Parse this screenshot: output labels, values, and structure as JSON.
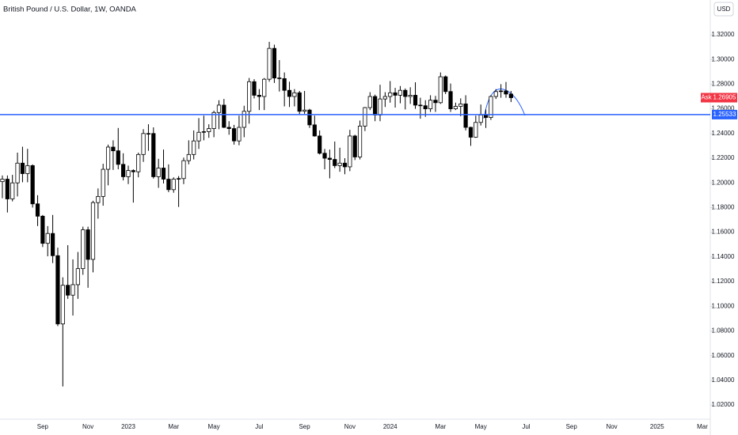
{
  "chart_data": {
    "type": "candlestick",
    "title": "British Pound / U.S. Dollar, 1W, OANDA",
    "currency": "USD",
    "categories": [
      null,
      null,
      null,
      null,
      null,
      null,
      null,
      null,
      "Sep",
      null,
      null,
      null,
      null,
      null,
      null,
      null,
      null,
      "Nov",
      null,
      null,
      null,
      null,
      null,
      null,
      null,
      "2023",
      null,
      null,
      null,
      null,
      null,
      null,
      null,
      null,
      "Mar",
      null,
      null,
      null,
      null,
      null,
      null,
      null,
      "May",
      null,
      null,
      null,
      null,
      null,
      null,
      null,
      null,
      "Jul",
      null,
      null,
      null,
      null,
      null,
      null,
      null,
      null,
      "Sep",
      null,
      null,
      null,
      null,
      null,
      null,
      null,
      null,
      "Nov",
      null,
      null,
      null,
      null,
      null,
      null,
      null,
      "2024",
      null,
      null,
      null,
      null,
      null,
      null,
      null,
      null,
      null,
      "Mar",
      null,
      null,
      null,
      null,
      null,
      null,
      null,
      "May",
      null,
      null,
      null,
      null,
      null,
      null,
      null,
      null,
      "Jul",
      null,
      null,
      null,
      null,
      null,
      null,
      null,
      null,
      "Sep",
      null,
      null,
      null,
      null,
      null,
      null,
      null,
      "Nov",
      null,
      null,
      null,
      null,
      null,
      null,
      null,
      null,
      "2025",
      null,
      null,
      null,
      null,
      null,
      null,
      null,
      null,
      "Mar",
      null
    ],
    "open": [
      1.201,
      1.203,
      1.187,
      1.2,
      1.216,
      1.2075,
      1.214,
      1.183,
      1.173,
      1.151,
      1.159,
      1.141,
      1.0857,
      1.117,
      1.109,
      1.1175,
      1.1305,
      1.162,
      1.138,
      1.184,
      1.189,
      1.211,
      1.229,
      1.226,
      1.215,
      1.205,
      1.21,
      1.209,
      1.223,
      1.24,
      1.24,
      1.205,
      1.212,
      1.203,
      1.1945,
      1.203,
      1.2035,
      1.218,
      1.223,
      1.234,
      1.241,
      1.2415,
      1.244,
      1.257,
      1.263,
      1.245,
      1.244,
      1.234,
      1.245,
      1.258,
      1.282,
      1.271,
      1.27,
      1.284,
      1.309,
      1.285,
      1.2845,
      1.275,
      1.27,
      1.273,
      1.258,
      1.259,
      1.247,
      1.238,
      1.224,
      1.22,
      1.219,
      1.214,
      1.216,
      1.213,
      1.238,
      1.221,
      1.246,
      1.261,
      1.27,
      1.255,
      1.268,
      1.27,
      1.273,
      1.271,
      1.275,
      1.27,
      1.271,
      1.263,
      1.2625,
      1.26,
      1.267,
      1.265,
      1.286,
      1.274,
      1.26,
      1.262,
      1.264,
      1.245,
      1.237,
      1.249,
      1.255,
      1.253,
      1.27,
      1.274,
      1.2745,
      1.272,
      null,
      null,
      null,
      null,
      null,
      null,
      null,
      null,
      null,
      null,
      null,
      null,
      null,
      null,
      null,
      null,
      null,
      null,
      null,
      null,
      null,
      null,
      null,
      null,
      null,
      null,
      null,
      null,
      null,
      null,
      null,
      null,
      null,
      null,
      null,
      null,
      null,
      null,
      null
    ],
    "high": [
      1.206,
      1.206,
      1.2065,
      1.2245,
      1.2293,
      1.2276,
      1.215,
      1.19,
      1.174,
      1.165,
      1.174,
      1.1475,
      1.1235,
      1.1495,
      1.138,
      1.144,
      1.1645,
      1.1645,
      1.1855,
      1.1955,
      1.2155,
      1.231,
      1.2345,
      1.2445,
      1.224,
      1.214,
      1.211,
      1.2245,
      1.2435,
      1.2475,
      1.245,
      1.2195,
      1.227,
      1.215,
      1.2045,
      1.2055,
      1.2205,
      1.2345,
      1.2425,
      1.2525,
      1.2545,
      1.2475,
      1.2585,
      1.267,
      1.268,
      1.25,
      1.247,
      1.2545,
      1.2625,
      1.285,
      1.284,
      1.276,
      1.285,
      1.3143,
      1.312,
      1.2995,
      1.2895,
      1.282,
      1.276,
      1.2745,
      1.2745,
      1.26,
      1.2545,
      1.2425,
      1.2275,
      1.227,
      1.2335,
      1.2285,
      1.22,
      1.243,
      1.239,
      1.2505,
      1.2615,
      1.2735,
      1.2715,
      1.2795,
      1.2735,
      1.2825,
      1.277,
      1.2785,
      1.2765,
      1.2775,
      1.2815,
      1.269,
      1.267,
      1.271,
      1.2705,
      1.2895,
      1.287,
      1.2805,
      1.265,
      1.2685,
      1.271,
      1.2455,
      1.2545,
      1.2635,
      1.2595,
      1.271,
      1.276,
      1.28,
      1.2818,
      1.2745,
      null,
      null,
      null,
      null,
      null,
      null,
      null,
      null,
      null,
      null,
      null,
      null,
      null,
      null,
      null,
      null,
      null,
      null,
      null,
      null,
      null,
      null,
      null,
      null,
      null,
      null,
      null,
      null,
      null,
      null,
      null,
      null,
      null,
      null,
      null,
      null,
      null,
      null,
      null
    ],
    "low": [
      1.1876,
      1.176,
      1.185,
      1.189,
      1.2005,
      1.2005,
      1.18,
      1.165,
      1.148,
      1.1405,
      1.135,
      1.0839,
      1.035,
      1.106,
      1.0925,
      1.106,
      1.1255,
      1.115,
      1.1275,
      1.171,
      1.1815,
      1.198,
      1.2105,
      1.211,
      1.202,
      1.199,
      1.184,
      1.2045,
      1.217,
      1.226,
      1.2035,
      1.196,
      1.1995,
      1.1925,
      1.192,
      1.1805,
      1.199,
      1.215,
      1.219,
      1.2275,
      1.2345,
      1.2365,
      1.237,
      1.2435,
      1.2445,
      1.239,
      1.231,
      1.2305,
      1.237,
      1.248,
      1.2685,
      1.259,
      1.259,
      1.282,
      1.281,
      1.274,
      1.262,
      1.2615,
      1.262,
      1.255,
      1.256,
      1.2445,
      1.2375,
      1.223,
      1.211,
      1.2037,
      1.212,
      1.209,
      1.207,
      1.2095,
      1.2185,
      1.219,
      1.242,
      1.259,
      1.25,
      1.25,
      1.2615,
      1.265,
      1.261,
      1.2645,
      1.2595,
      1.264,
      1.26,
      1.252,
      1.2535,
      1.2575,
      1.2575,
      1.264,
      1.272,
      1.2575,
      1.259,
      1.254,
      1.2425,
      1.23,
      1.2365,
      1.2465,
      1.2445,
      1.251,
      1.268,
      1.269,
      1.269,
      1.2655,
      null,
      null,
      null,
      null,
      null,
      null,
      null,
      null,
      null,
      null,
      null,
      null,
      null,
      null,
      null,
      null,
      null,
      null,
      null,
      null,
      null,
      null,
      null,
      null,
      null,
      null,
      null,
      null,
      null,
      null,
      null,
      null,
      null,
      null,
      null,
      null,
      null,
      null,
      null
    ],
    "close": [
      1.203,
      1.187,
      1.2,
      1.216,
      1.2075,
      1.214,
      1.183,
      1.173,
      1.151,
      1.159,
      1.141,
      1.0857,
      1.117,
      1.109,
      1.1175,
      1.1305,
      1.162,
      1.138,
      1.184,
      1.189,
      1.211,
      1.229,
      1.226,
      1.215,
      1.205,
      1.21,
      1.209,
      1.223,
      1.24,
      1.24,
      1.205,
      1.212,
      1.203,
      1.1945,
      1.203,
      1.2035,
      1.218,
      1.223,
      1.234,
      1.241,
      1.2415,
      1.244,
      1.257,
      1.263,
      1.245,
      1.244,
      1.234,
      1.245,
      1.258,
      1.282,
      1.271,
      1.27,
      1.284,
      1.309,
      1.285,
      1.2845,
      1.275,
      1.27,
      1.273,
      1.258,
      1.259,
      1.247,
      1.238,
      1.224,
      1.22,
      1.219,
      1.214,
      1.216,
      1.213,
      1.238,
      1.221,
      1.246,
      1.261,
      1.27,
      1.255,
      1.268,
      1.27,
      1.273,
      1.271,
      1.275,
      1.27,
      1.271,
      1.263,
      1.2625,
      1.26,
      1.267,
      1.265,
      1.286,
      1.274,
      1.26,
      1.262,
      1.264,
      1.245,
      1.237,
      1.249,
      1.255,
      1.253,
      1.27,
      1.274,
      1.2745,
      1.272,
      1.26905,
      null,
      null,
      null,
      null,
      null,
      null,
      null,
      null,
      null,
      null,
      null,
      null,
      null,
      null,
      null,
      null,
      null,
      null,
      null,
      null,
      null,
      null,
      null,
      null,
      null,
      null,
      null,
      null,
      null,
      null,
      null,
      null,
      null,
      null,
      null,
      null,
      null,
      null,
      null
    ],
    "up_color": "#ffffff",
    "down_color": "#000000",
    "wick_color": "#000000",
    "ylim": [
      1.0085,
      1.3482
    ],
    "yticks": [
      {
        "value": 1.02,
        "label": "1.02000"
      },
      {
        "value": 1.04,
        "label": "1.04000"
      },
      {
        "value": 1.06,
        "label": "1.06000"
      },
      {
        "value": 1.08,
        "label": "1.08000"
      },
      {
        "value": 1.1,
        "label": "1.10000"
      },
      {
        "value": 1.12,
        "label": "1.12000"
      },
      {
        "value": 1.14,
        "label": "1.14000"
      },
      {
        "value": 1.16,
        "label": "1.16000"
      },
      {
        "value": 1.18,
        "label": "1.18000"
      },
      {
        "value": 1.2,
        "label": "1.20000"
      },
      {
        "value": 1.22,
        "label": "1.22000"
      },
      {
        "value": 1.24,
        "label": "1.24000"
      },
      {
        "value": 1.26,
        "label": "1.26000"
      },
      {
        "value": 1.28,
        "label": "1.28000"
      },
      {
        "value": 1.3,
        "label": "1.30000"
      },
      {
        "value": 1.32,
        "label": "1.32000"
      }
    ],
    "grid": false,
    "hline": {
      "value": 1.25533,
      "color": "#2962ff"
    },
    "last_price": {
      "label": "Ask",
      "value": 1.26905,
      "color": "#f23645"
    }
  }
}
